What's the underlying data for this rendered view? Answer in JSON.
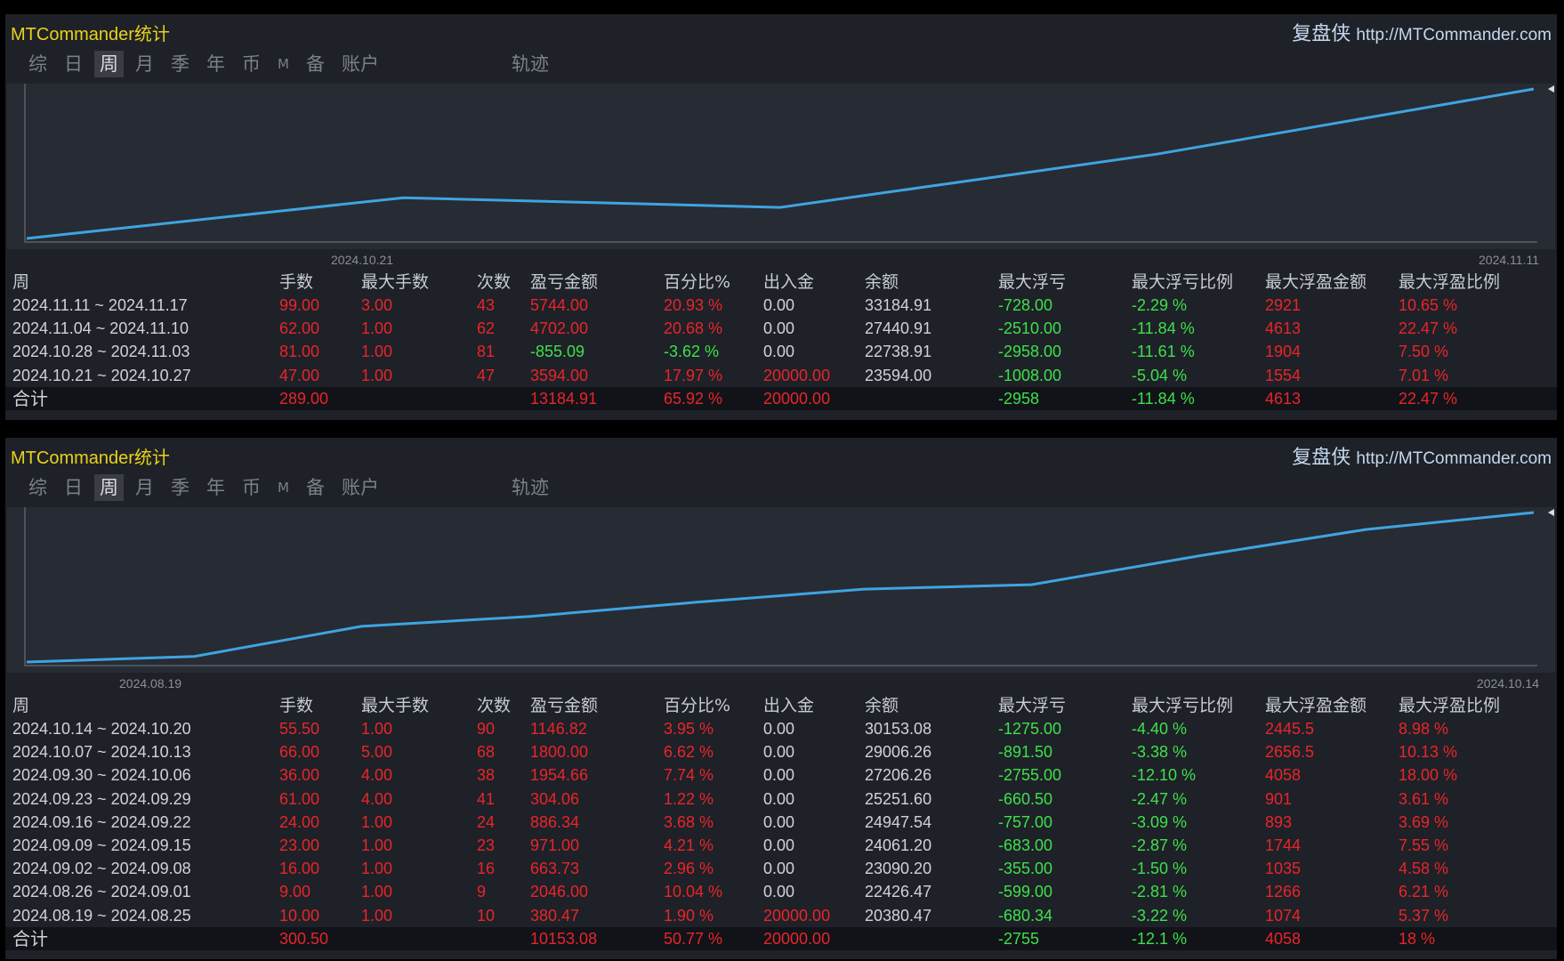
{
  "colors": {
    "line": "#3fa4e0",
    "positive": "#e8252a",
    "negative": "#3ee04c",
    "title": "#e8d21a"
  },
  "tabs": [
    "综",
    "日",
    "周",
    "月",
    "季",
    "年",
    "币",
    "M",
    "备",
    "账户",
    "轨迹"
  ],
  "active_tab": "周",
  "headers": [
    "周",
    "手数",
    "最大手数",
    "次数",
    "盈亏金额",
    "百分比%",
    "出入金",
    "余额",
    "最大浮亏",
    "最大浮亏比例",
    "最大浮盈金额",
    "最大浮盈比例"
  ],
  "panels": [
    {
      "title": "MTCommander统计",
      "brand_cn": "复盘侠",
      "brand_url": "http://MTCommander.com",
      "chart_data": {
        "type": "line",
        "x": [
          "2024.10.21",
          "2024.10.27",
          "2024.11.03",
          "2024.11.10",
          "2024.11.17"
        ],
        "values": [
          20000,
          23594.0,
          22738.91,
          27440.91,
          33184.91
        ],
        "x_start_label": "2024.10.21",
        "x_end_label": "2024.11.11"
      },
      "rows": [
        [
          "2024.11.11 ~ 2024.11.17",
          "99.00",
          "3.00",
          "43",
          "5744.00",
          "20.93 %",
          "0.00",
          "33184.91",
          "-728.00",
          "-2.29 %",
          "2921",
          "10.65 %"
        ],
        [
          "2024.11.04 ~ 2024.11.10",
          "62.00",
          "1.00",
          "62",
          "4702.00",
          "20.68 %",
          "0.00",
          "27440.91",
          "-2510.00",
          "-11.84 %",
          "4613",
          "22.47 %"
        ],
        [
          "2024.10.28 ~ 2024.11.03",
          "81.00",
          "1.00",
          "81",
          "-855.09",
          "-3.62 %",
          "0.00",
          "22738.91",
          "-2958.00",
          "-11.61 %",
          "1904",
          "7.50 %"
        ],
        [
          "2024.10.21 ~ 2024.10.27",
          "47.00",
          "1.00",
          "47",
          "3594.00",
          "17.97 %",
          "20000.00",
          "23594.00",
          "-1008.00",
          "-5.04 %",
          "1554",
          "7.01 %"
        ]
      ],
      "total": [
        "合计",
        "289.00",
        "",
        "",
        "13184.91",
        "65.92 %",
        "20000.00",
        "",
        "-2958",
        "-11.84 %",
        "4613",
        "22.47 %"
      ]
    },
    {
      "title": "MTCommander统计",
      "brand_cn": "复盘侠",
      "brand_url": "http://MTCommander.com",
      "chart_data": {
        "type": "line",
        "x": [
          "2024.08.19",
          "2024.08.25",
          "2024.09.01",
          "2024.09.08",
          "2024.09.15",
          "2024.09.22",
          "2024.09.29",
          "2024.10.06",
          "2024.10.13",
          "2024.10.20"
        ],
        "values": [
          20000,
          20380.47,
          22426.47,
          23090.2,
          24061.2,
          24947.54,
          25251.6,
          27206.26,
          29006.26,
          30153.08
        ],
        "x_start_label": "2024.08.19",
        "x_end_label": "2024.10.14"
      },
      "rows": [
        [
          "2024.10.14 ~ 2024.10.20",
          "55.50",
          "1.00",
          "90",
          "1146.82",
          "3.95 %",
          "0.00",
          "30153.08",
          "-1275.00",
          "-4.40 %",
          "2445.5",
          "8.98 %"
        ],
        [
          "2024.10.07 ~ 2024.10.13",
          "66.00",
          "5.00",
          "68",
          "1800.00",
          "6.62 %",
          "0.00",
          "29006.26",
          "-891.50",
          "-3.38 %",
          "2656.5",
          "10.13 %"
        ],
        [
          "2024.09.30 ~ 2024.10.06",
          "36.00",
          "4.00",
          "38",
          "1954.66",
          "7.74 %",
          "0.00",
          "27206.26",
          "-2755.00",
          "-12.10 %",
          "4058",
          "18.00 %"
        ],
        [
          "2024.09.23 ~ 2024.09.29",
          "61.00",
          "4.00",
          "41",
          "304.06",
          "1.22 %",
          "0.00",
          "25251.60",
          "-660.50",
          "-2.47 %",
          "901",
          "3.61 %"
        ],
        [
          "2024.09.16 ~ 2024.09.22",
          "24.00",
          "1.00",
          "24",
          "886.34",
          "3.68 %",
          "0.00",
          "24947.54",
          "-757.00",
          "-3.09 %",
          "893",
          "3.69 %"
        ],
        [
          "2024.09.09 ~ 2024.09.15",
          "23.00",
          "1.00",
          "23",
          "971.00",
          "4.21 %",
          "0.00",
          "24061.20",
          "-683.00",
          "-2.87 %",
          "1744",
          "7.55 %"
        ],
        [
          "2024.09.02 ~ 2024.09.08",
          "16.00",
          "1.00",
          "16",
          "663.73",
          "2.96 %",
          "0.00",
          "23090.20",
          "-355.00",
          "-1.50 %",
          "1035",
          "4.58 %"
        ],
        [
          "2024.08.26 ~ 2024.09.01",
          "9.00",
          "1.00",
          "9",
          "2046.00",
          "10.04 %",
          "0.00",
          "22426.47",
          "-599.00",
          "-2.81 %",
          "1266",
          "6.21 %"
        ],
        [
          "2024.08.19 ~ 2024.08.25",
          "10.00",
          "1.00",
          "10",
          "380.47",
          "1.90 %",
          "20000.00",
          "20380.47",
          "-680.34",
          "-3.22 %",
          "1074",
          "5.37 %"
        ]
      ],
      "total": [
        "合计",
        "300.50",
        "",
        "",
        "10153.08",
        "50.77 %",
        "20000.00",
        "",
        "-2755",
        "-12.1 %",
        "4058",
        "18 %"
      ]
    }
  ]
}
